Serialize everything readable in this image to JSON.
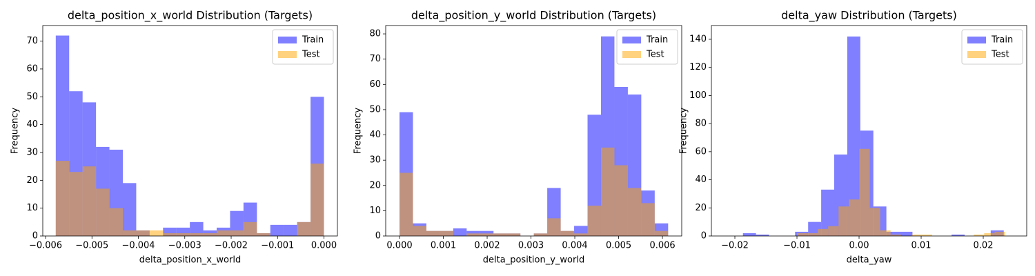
{
  "chart_data": [
    {
      "type": "histogram",
      "title": "delta_position_x_world Distribution (Targets)",
      "xlabel": "delta_position_x_world",
      "ylabel": "Frequency",
      "xlim": [
        -0.00606,
        0.00029
      ],
      "ylim": [
        0,
        75.6
      ],
      "xticks": [
        {
          "value": -0.006,
          "label": "−0.006"
        },
        {
          "value": -0.005,
          "label": "−0.005"
        },
        {
          "value": -0.004,
          "label": "−0.004"
        },
        {
          "value": -0.003,
          "label": "−0.003"
        },
        {
          "value": -0.002,
          "label": "−0.002"
        },
        {
          "value": -0.001,
          "label": "−0.001"
        },
        {
          "value": 0,
          "label": "0.000"
        }
      ],
      "yticks": [
        0,
        10,
        20,
        30,
        40,
        50,
        60,
        70
      ],
      "legend": "upper right",
      "alpha": 0.5,
      "series": [
        {
          "name": "Train",
          "color": "blue",
          "bins": [
            -0.00578,
            -0.005491,
            -0.005202,
            -0.004913,
            -0.004624,
            -0.004335,
            -0.004046,
            -0.003757,
            -0.003468,
            -0.003179,
            -0.00289,
            -0.002601,
            -0.002312,
            -0.002023,
            -0.001734,
            -0.001445,
            -0.001156,
            -0.000867,
            -0.000578,
            -0.000289,
            0.0
          ],
          "values": [
            72,
            52,
            48,
            32,
            31,
            19,
            2,
            0,
            3,
            3,
            5,
            2,
            3,
            9,
            12,
            1,
            4,
            4,
            5,
            50
          ]
        },
        {
          "name": "Test",
          "color": "orange",
          "bins": [
            -0.00578,
            -0.005491,
            -0.005202,
            -0.004913,
            -0.004624,
            -0.004335,
            -0.004046,
            -0.003757,
            -0.003468,
            -0.003179,
            -0.00289,
            -0.002601,
            -0.002312,
            -0.002023,
            -0.001734,
            -0.001445,
            -0.001156,
            -0.000867,
            -0.000578,
            -0.000289,
            0.0
          ],
          "values": [
            27,
            23,
            25,
            17,
            10,
            2,
            2,
            2,
            1,
            1,
            1,
            1,
            2,
            2,
            5,
            1,
            0,
            0,
            5,
            26
          ]
        }
      ]
    },
    {
      "type": "histogram",
      "title": "delta_position_y_world Distribution (Targets)",
      "xlabel": "delta_position_y_world",
      "ylabel": "Frequency",
      "xlim": [
        -0.000315,
        0.00644
      ],
      "ylim": [
        0,
        83.3
      ],
      "xticks": [
        {
          "value": 0,
          "label": "0.000"
        },
        {
          "value": 0.001,
          "label": "0.001"
        },
        {
          "value": 0.002,
          "label": "0.002"
        },
        {
          "value": 0.003,
          "label": "0.003"
        },
        {
          "value": 0.004,
          "label": "0.004"
        },
        {
          "value": 0.005,
          "label": "0.005"
        },
        {
          "value": 0.006,
          "label": "0.006"
        }
      ],
      "yticks": [
        0,
        10,
        20,
        30,
        40,
        50,
        60,
        70,
        80
      ],
      "legend": "upper right",
      "alpha": 0.5,
      "series": [
        {
          "name": "Train",
          "color": "blue",
          "bins": [
            0,
            0.0003065,
            0.000613,
            0.0009195,
            0.001226,
            0.0015325,
            0.001839,
            0.0021455,
            0.002452,
            0.0027585,
            0.003065,
            0.0033715,
            0.003678,
            0.0039845,
            0.004291,
            0.0045975,
            0.004904,
            0.0052105,
            0.005517,
            0.0058235,
            0.00613
          ],
          "values": [
            49,
            5,
            2,
            2,
            3,
            2,
            2,
            1,
            1,
            0,
            1,
            19,
            2,
            4,
            48,
            79,
            59,
            56,
            18,
            5
          ]
        },
        {
          "name": "Test",
          "color": "orange",
          "bins": [
            0,
            0.0003065,
            0.000613,
            0.0009195,
            0.001226,
            0.0015325,
            0.001839,
            0.0021455,
            0.002452,
            0.0027585,
            0.003065,
            0.0033715,
            0.003678,
            0.0039845,
            0.004291,
            0.0045975,
            0.004904,
            0.0052105,
            0.005517,
            0.0058235,
            0.00613
          ],
          "values": [
            25,
            4,
            2,
            2,
            0,
            1,
            1,
            1,
            1,
            0,
            1,
            7,
            2,
            1,
            12,
            35,
            28,
            19,
            13,
            2
          ]
        }
      ]
    },
    {
      "type": "histogram",
      "title": "delta_yaw Distribution (Targets)",
      "xlabel": "delta_yaw",
      "ylabel": "Frequency",
      "xlim": [
        -0.02378,
        0.027
      ],
      "ylim": [
        0,
        149.8
      ],
      "xticks": [
        {
          "value": -0.02,
          "label": "−0.02"
        },
        {
          "value": -0.01,
          "label": "−0.01"
        },
        {
          "value": 0,
          "label": "0.00"
        },
        {
          "value": 0.01,
          "label": "0.01"
        },
        {
          "value": 0.02,
          "label": "0.02"
        }
      ],
      "yticks": [
        0,
        20,
        40,
        60,
        80,
        100,
        120,
        140
      ],
      "legend": "upper right",
      "alpha": 0.5,
      "series": [
        {
          "name": "Train",
          "color": "blue",
          "bins": [
            -0.0187,
            -0.0166,
            -0.0145,
            -0.0124,
            -0.0103,
            -0.0082,
            -0.0061,
            -0.004,
            -0.0019,
            0.0002,
            0.0023,
            0.0044,
            0.0065,
            0.0086,
            0.0107,
            0.0128,
            0.0149,
            0.017,
            0.0191,
            0.0212,
            0.0233
          ],
          "values": [
            2,
            1,
            0,
            0,
            3,
            10,
            33,
            58,
            142,
            75,
            21,
            3,
            3,
            0,
            0,
            0,
            1,
            0,
            0,
            4
          ]
        },
        {
          "name": "Test",
          "color": "orange",
          "bins": [
            -0.01,
            -0.008325,
            -0.00665,
            -0.004975,
            -0.0033,
            -0.001625,
            5e-05,
            0.001725,
            0.0034,
            0.005075,
            0.00675,
            0.008425,
            0.0101,
            0.011775,
            0.01345,
            0.015125,
            0.0168,
            0.018475,
            0.02015,
            0.021825,
            0.0235
          ],
          "values": [
            2,
            2,
            5,
            7,
            21,
            26,
            62,
            20,
            4,
            1,
            0,
            1,
            1,
            0,
            0,
            0,
            0,
            1,
            2,
            3
          ]
        }
      ]
    }
  ]
}
